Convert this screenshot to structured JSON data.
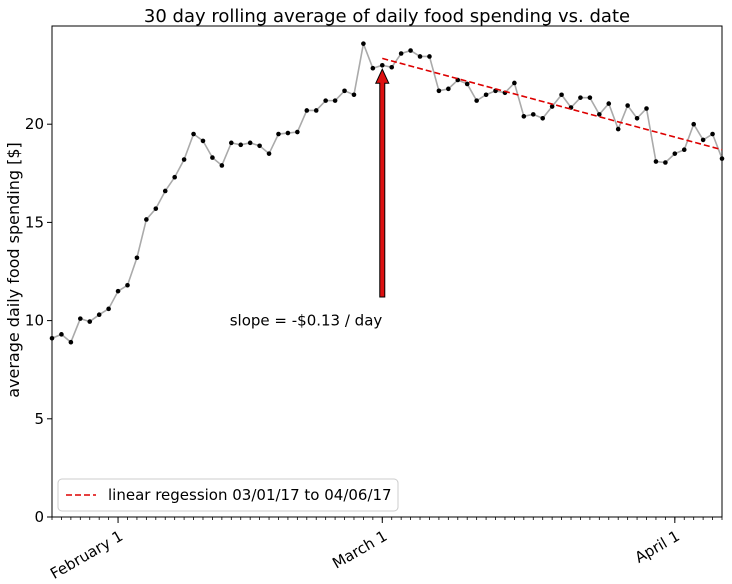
{
  "chart_data": {
    "type": "line",
    "title": "30 day rolling average of daily food spending vs. date",
    "ylabel": "average daily food spending [$]",
    "xlabel": "",
    "xlim": [
      "2017-01-25",
      "2017-04-06"
    ],
    "ylim": [
      0,
      25
    ],
    "yticks": [
      0,
      5,
      10,
      15,
      20
    ],
    "xticks": [
      {
        "date": "2017-02-01",
        "label": "February 1"
      },
      {
        "date": "2017-03-01",
        "label": "March 1"
      },
      {
        "date": "2017-04-01",
        "label": "April 1"
      }
    ],
    "grid": false,
    "legend_position": "lower-left",
    "series": [
      {
        "color": "#aaaaaa",
        "marker_color": "#000000",
        "points": [
          [
            "2017-01-25",
            9.1
          ],
          [
            "2017-01-26",
            9.3
          ],
          [
            "2017-01-27",
            8.9
          ],
          [
            "2017-01-28",
            10.1
          ],
          [
            "2017-01-29",
            9.95
          ],
          [
            "2017-01-30",
            10.3
          ],
          [
            "2017-01-31",
            10.6
          ],
          [
            "2017-02-01",
            11.5
          ],
          [
            "2017-02-02",
            11.8
          ],
          [
            "2017-02-03",
            13.2
          ],
          [
            "2017-02-04",
            15.15
          ],
          [
            "2017-02-05",
            15.7
          ],
          [
            "2017-02-06",
            16.6
          ],
          [
            "2017-02-07",
            17.3
          ],
          [
            "2017-02-08",
            18.2
          ],
          [
            "2017-02-09",
            19.5
          ],
          [
            "2017-02-10",
            19.15
          ],
          [
            "2017-02-11",
            18.3
          ],
          [
            "2017-02-12",
            17.9
          ],
          [
            "2017-02-13",
            19.05
          ],
          [
            "2017-02-14",
            18.95
          ],
          [
            "2017-02-15",
            19.05
          ],
          [
            "2017-02-16",
            18.9
          ],
          [
            "2017-02-17",
            18.5
          ],
          [
            "2017-02-18",
            19.5
          ],
          [
            "2017-02-19",
            19.55
          ],
          [
            "2017-02-20",
            19.6
          ],
          [
            "2017-02-21",
            20.7
          ],
          [
            "2017-02-22",
            20.7
          ],
          [
            "2017-02-23",
            21.2
          ],
          [
            "2017-02-24",
            21.2
          ],
          [
            "2017-02-25",
            21.7
          ],
          [
            "2017-02-26",
            21.5
          ],
          [
            "2017-02-27",
            24.1
          ],
          [
            "2017-02-28",
            22.85
          ],
          [
            "2017-03-01",
            23.0
          ],
          [
            "2017-03-02",
            22.9
          ],
          [
            "2017-03-03",
            23.6
          ],
          [
            "2017-03-04",
            23.75
          ],
          [
            "2017-03-05",
            23.45
          ],
          [
            "2017-03-06",
            23.45
          ],
          [
            "2017-03-07",
            21.7
          ],
          [
            "2017-03-08",
            21.8
          ],
          [
            "2017-03-09",
            22.25
          ],
          [
            "2017-03-10",
            22.05
          ],
          [
            "2017-03-11",
            21.2
          ],
          [
            "2017-03-12",
            21.5
          ],
          [
            "2017-03-13",
            21.7
          ],
          [
            "2017-03-14",
            21.6
          ],
          [
            "2017-03-15",
            22.1
          ],
          [
            "2017-03-16",
            20.4
          ],
          [
            "2017-03-17",
            20.5
          ],
          [
            "2017-03-18",
            20.3
          ],
          [
            "2017-03-19",
            20.9
          ],
          [
            "2017-03-20",
            21.5
          ],
          [
            "2017-03-21",
            20.85
          ],
          [
            "2017-03-22",
            21.35
          ],
          [
            "2017-03-23",
            21.35
          ],
          [
            "2017-03-24",
            20.5
          ],
          [
            "2017-03-25",
            21.05
          ],
          [
            "2017-03-26",
            19.75
          ],
          [
            "2017-03-27",
            20.95
          ],
          [
            "2017-03-28",
            20.3
          ],
          [
            "2017-03-29",
            20.8
          ],
          [
            "2017-03-30",
            18.1
          ],
          [
            "2017-03-31",
            18.05
          ],
          [
            "2017-04-01",
            18.5
          ],
          [
            "2017-04-02",
            18.7
          ],
          [
            "2017-04-03",
            20.0
          ],
          [
            "2017-04-04",
            19.2
          ],
          [
            "2017-04-05",
            19.5
          ],
          [
            "2017-04-06",
            18.25
          ]
        ]
      }
    ],
    "regression": {
      "name": "linear regession 03/01/17 to 04/06/17",
      "color": "#dd0000",
      "start": [
        "2017-03-01",
        23.35
      ],
      "end": [
        "2017-04-06",
        18.7
      ]
    },
    "annotation": {
      "text": "slope = -$0.13 / day",
      "text_at": [
        "2017-03-01",
        10.0
      ],
      "arrow_from": [
        "2017-03-01",
        11.2
      ],
      "arrow_to": [
        "2017-03-01",
        22.8
      ],
      "arrow_color": "#dd1111"
    }
  }
}
